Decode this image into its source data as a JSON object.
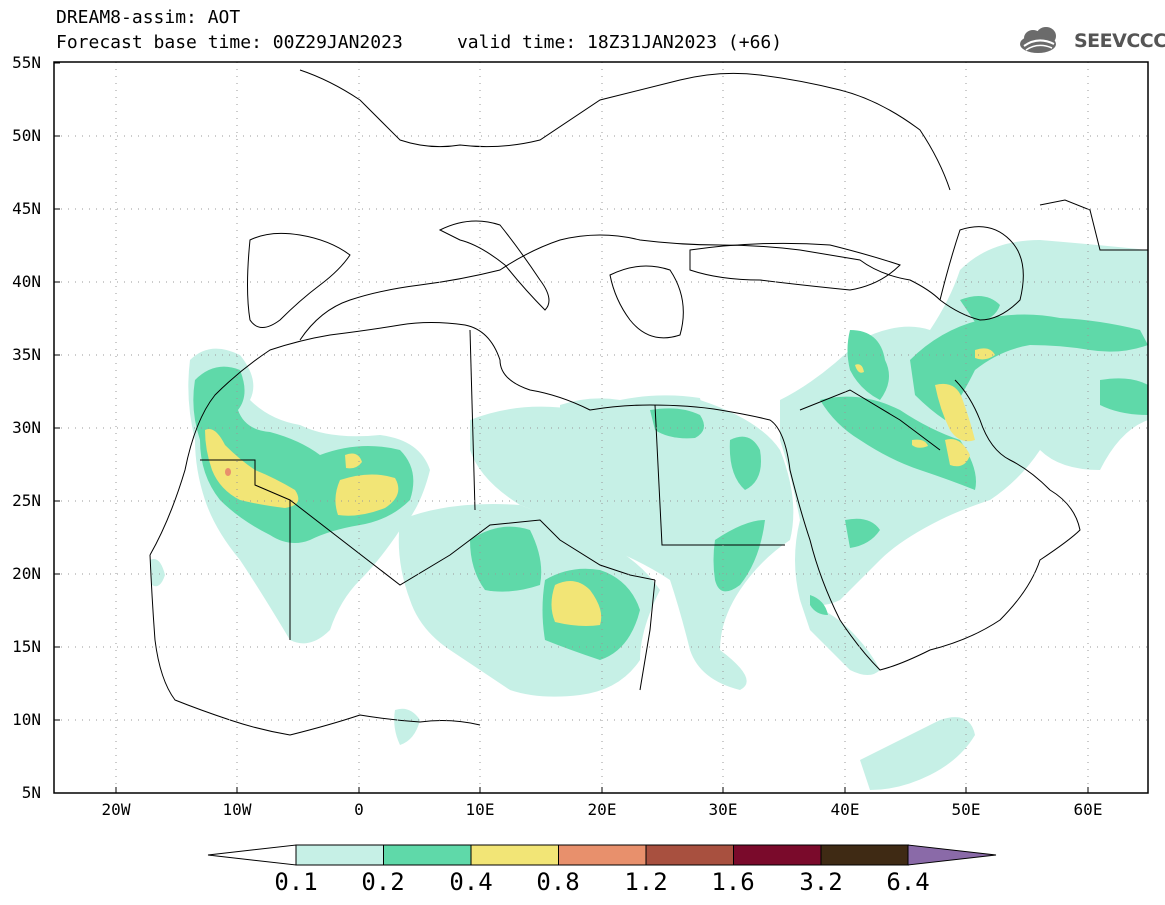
{
  "header": {
    "title": "DREAM8-assim: AOT",
    "subtitle": "Forecast base time: 00Z29JAN2023     valid time: 18Z31JAN2023 (+66)",
    "logo_text": "SEEVCCC"
  },
  "map": {
    "lat_labels": [
      "55N",
      "50N",
      "45N",
      "40N",
      "35N",
      "30N",
      "25N",
      "20N",
      "15N",
      "10N",
      "5N"
    ],
    "lon_labels": [
      "20W",
      "10W",
      "0",
      "10E",
      "20E",
      "30E",
      "40E",
      "50E",
      "60E"
    ]
  },
  "colorbar": {
    "labels": [
      "0.1",
      "0.2",
      "0.4",
      "0.8",
      "1.2",
      "1.6",
      "3.2",
      "6.4"
    ],
    "colors": [
      "#c6f0e6",
      "#5fd9a9",
      "#f2e576",
      "#e8906c",
      "#a8503f",
      "#7a0a2b",
      "#3f2a14",
      "#8a6aa8"
    ]
  }
}
